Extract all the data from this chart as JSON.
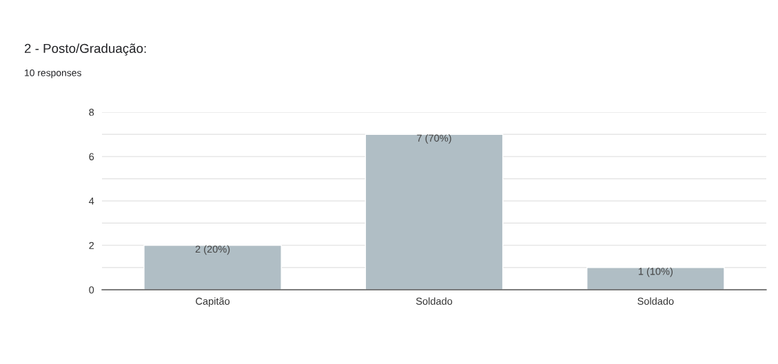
{
  "chart_data": {
    "type": "bar",
    "title": "2 - Posto/Graduação:",
    "subtitle": "10 responses",
    "categories": [
      "Capitão",
      "Soldado",
      "Soldado"
    ],
    "values": [
      2,
      7,
      1
    ],
    "color": "#b0bec5",
    "value_labels": [
      "2 (20%)",
      "7 (70%)",
      "1 (10%)"
    ],
    "ylim": [
      0,
      8
    ],
    "yticks": [
      0,
      {
        "value": 1,
        "label": null
      },
      2,
      {
        "value": 3,
        "label": null
      },
      4,
      {
        "value": 5,
        "label": null
      },
      6,
      {
        "value": 7,
        "label": null
      },
      8
    ],
    "grid": "y",
    "legend": false
  }
}
